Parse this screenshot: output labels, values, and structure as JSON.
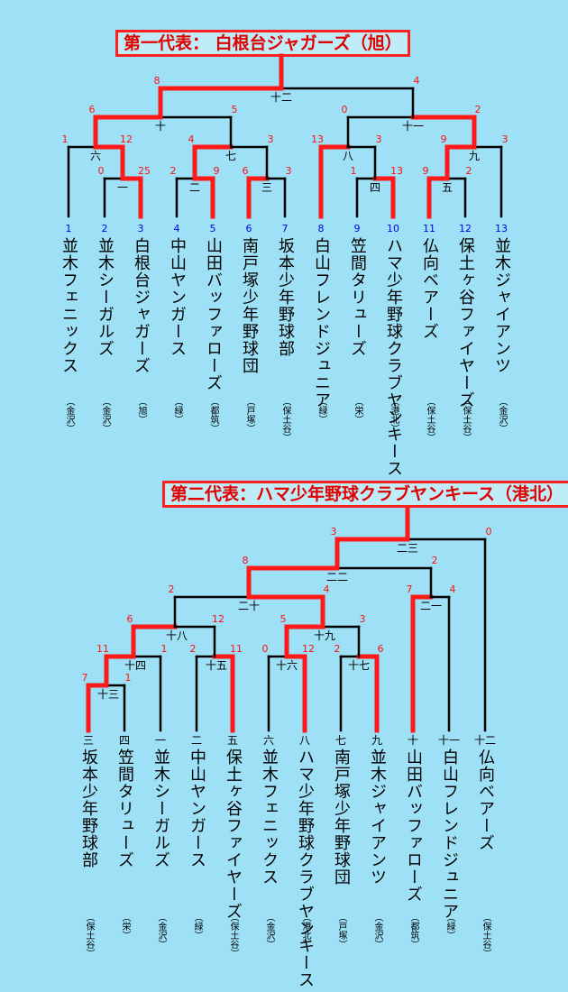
{
  "section1": {
    "title": "第一代表： 白根台ジャガーズ（旭）",
    "teams": [
      {
        "num": "1",
        "name": "並木フェニックス",
        "region": "（金沢）"
      },
      {
        "num": "2",
        "name": "並木シーガルズ",
        "region": "（金沢）"
      },
      {
        "num": "3",
        "name": "白根台ジャガーズ",
        "region": "（旭）"
      },
      {
        "num": "4",
        "name": "中山ヤンガース",
        "region": "（緑）"
      },
      {
        "num": "5",
        "name": "山田バッファローズ",
        "region": "（都筑）"
      },
      {
        "num": "6",
        "name": "南戸塚少年野球団",
        "region": "（戸塚）"
      },
      {
        "num": "7",
        "name": "坂本少年野球部",
        "region": "（保土谷）"
      },
      {
        "num": "8",
        "name": "白山フレンドジュニア",
        "region": "（緑）"
      },
      {
        "num": "9",
        "name": "笠間タリューズ",
        "region": "（栄）"
      },
      {
        "num": "10",
        "name": "ハマ少年野球クラブヤンキース",
        "region": "（港北）"
      },
      {
        "num": "11",
        "name": "仏向ベアーズ",
        "region": "（保土谷）"
      },
      {
        "num": "12",
        "name": "保土ヶ谷ファイヤーズ",
        "region": "（保土谷）"
      },
      {
        "num": "13",
        "name": "並木ジャイアンツ",
        "region": "（金沢）"
      }
    ],
    "match_labels": [
      "一",
      "二",
      "三",
      "四",
      "五",
      "六",
      "七",
      "八",
      "九",
      "十",
      "十一",
      "十二"
    ],
    "scores": {
      "m1": [
        "0",
        "25"
      ],
      "m2": [
        "2",
        "9"
      ],
      "m3": [
        "6",
        "3"
      ],
      "m4": [
        "1",
        "13"
      ],
      "m5": [
        "9",
        "2"
      ],
      "m6": [
        "1",
        "12"
      ],
      "m7": [
        "4",
        "3"
      ],
      "m8": [
        "13",
        "3"
      ],
      "m9": [
        "9",
        "3"
      ],
      "m10": [
        "6",
        "5"
      ],
      "m11": [
        "0",
        "2"
      ],
      "m12": [
        "8",
        "4"
      ]
    }
  },
  "section2": {
    "title": "第二代表：ハマ少年野球クラブヤンキース（港北）",
    "teams": [
      {
        "seed": "三",
        "name": "坂本少年野球部",
        "region": "（保土谷）"
      },
      {
        "seed": "四",
        "name": "笠間タリューズ",
        "region": "（栄）"
      },
      {
        "seed": "一",
        "name": "並木シーガルズ",
        "region": "（金沢）"
      },
      {
        "seed": "二",
        "name": "中山ヤンガース",
        "region": "（緑）"
      },
      {
        "seed": "五",
        "name": "保土ヶ谷ファイヤーズ",
        "region": "（保土谷）"
      },
      {
        "seed": "六",
        "name": "並木フェニックス",
        "region": "（金沢）"
      },
      {
        "seed": "八",
        "name": "ハマ少年野球クラブヤンキース",
        "region": "（港北）"
      },
      {
        "seed": "七",
        "name": "南戸塚少年野球団",
        "region": "（戸塚）"
      },
      {
        "seed": "九",
        "name": "並木ジャイアンツ",
        "region": "（金沢）"
      },
      {
        "seed": "十",
        "name": "山田バッファローズ",
        "region": "（都筑）"
      },
      {
        "seed": "十一",
        "name": "白山フレンドジュニア",
        "region": "（緑）"
      },
      {
        "seed": "十二",
        "name": "仏向ベアーズ",
        "region": "（保土谷）"
      }
    ],
    "match_labels": [
      "十三",
      "十四",
      "十五",
      "十六",
      "十七",
      "十八",
      "十九",
      "二十",
      "二一",
      "二二",
      "二三"
    ],
    "scores": {
      "m13": [
        "7",
        "1"
      ],
      "m14": [
        "11",
        "1"
      ],
      "m15": [
        "2",
        "11"
      ],
      "m16": [
        "0",
        "12"
      ],
      "m17": [
        "2",
        "6"
      ],
      "m18": [
        "6",
        "12"
      ],
      "m19": [
        "5",
        "3"
      ],
      "m20": [
        "2",
        "4"
      ],
      "m21": [
        "7",
        "4"
      ],
      "m22": [
        "8",
        "2"
      ],
      "m23": [
        "3",
        "0"
      ]
    }
  }
}
